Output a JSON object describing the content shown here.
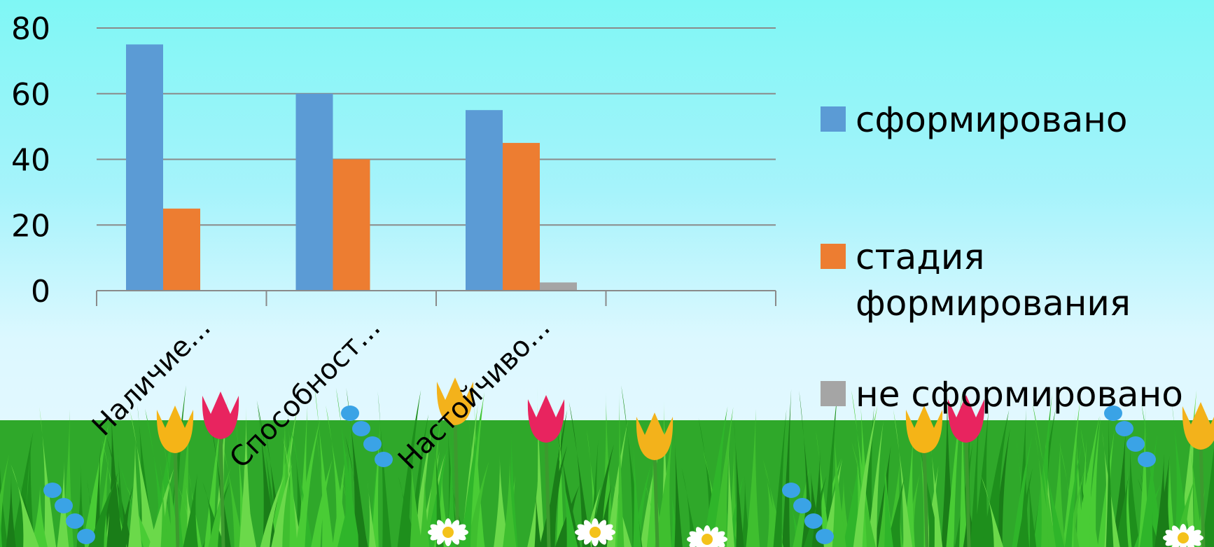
{
  "chart_data": {
    "type": "bar",
    "categories": [
      "Наличие...",
      "Способност...",
      "Настойчиво...",
      ""
    ],
    "series": [
      {
        "name": "сформировано",
        "values": [
          75,
          60,
          55,
          null
        ],
        "color": "#5b9bd5"
      },
      {
        "name": "стадия формирования",
        "values": [
          25,
          40,
          45,
          null
        ],
        "color": "#ed7d31"
      },
      {
        "name": "не сформировано",
        "values": [
          0,
          0,
          2.5,
          null
        ],
        "color": "#a5a5a5"
      }
    ],
    "y_ticks": [
      "0",
      "20",
      "40",
      "60",
      "80"
    ],
    "ylim": [
      0,
      80
    ],
    "grid": true,
    "legend_position": "right",
    "title": "",
    "xlabel": "",
    "ylabel": ""
  }
}
